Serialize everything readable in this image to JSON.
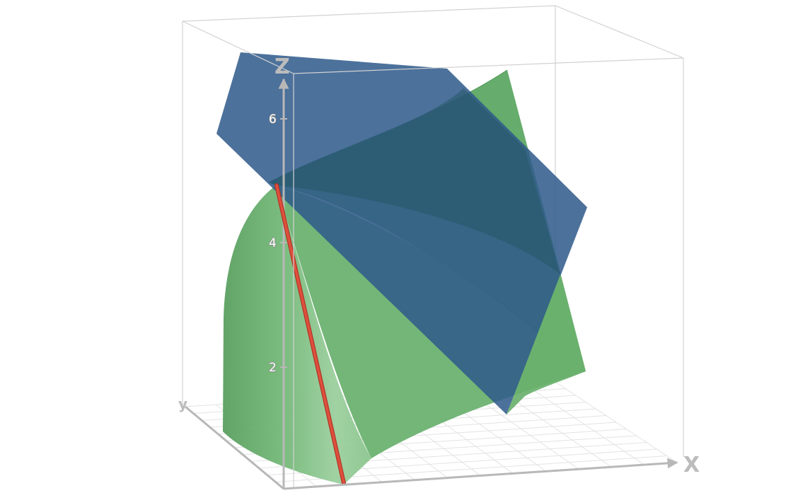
{
  "view": {
    "type": "3d-graph",
    "axes": {
      "x_label": "x",
      "y_label": "y",
      "z_label": "z",
      "z_ticks": [
        "2",
        "4",
        "6"
      ]
    },
    "objects": [
      {
        "name": "green-surface",
        "color": "#4caf5c"
      },
      {
        "name": "blue-plane",
        "color": "#2e5a8a"
      },
      {
        "name": "red-line",
        "color": "#e0503c"
      }
    ],
    "colors": {
      "box_edge": "#cfcfcf",
      "grid": "#e2e2e2",
      "axis": "#b8b8b8"
    }
  }
}
